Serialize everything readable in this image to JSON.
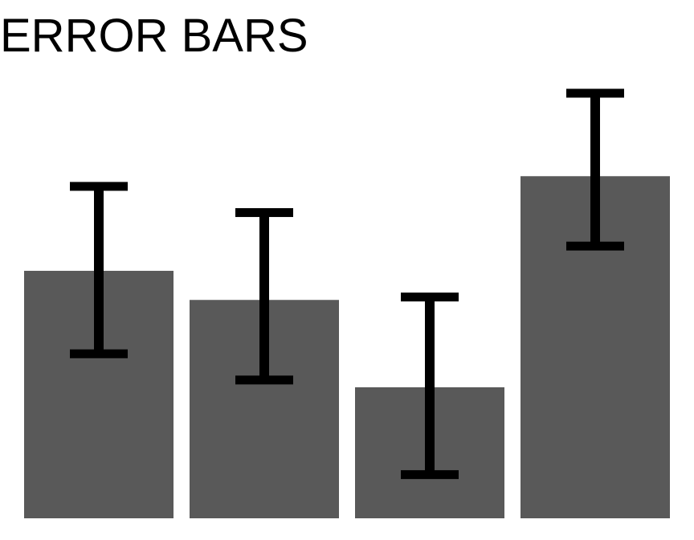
{
  "chart_data": {
    "type": "bar",
    "title": "ERROR BARS",
    "categories": [
      "",
      "",
      "",
      ""
    ],
    "values": [
      1.7,
      1.5,
      0.9,
      2.35
    ],
    "errors": [
      {
        "low": 1.13,
        "high": 2.28
      },
      {
        "low": 0.95,
        "high": 2.1
      },
      {
        "low": 0.3,
        "high": 1.52
      },
      {
        "low": 1.87,
        "high": 2.92
      }
    ],
    "xlabel": "",
    "ylabel": "",
    "ylim": [
      0,
      3.0
    ],
    "grid": false,
    "bar_color": "#595959",
    "error_color": "#000000"
  }
}
